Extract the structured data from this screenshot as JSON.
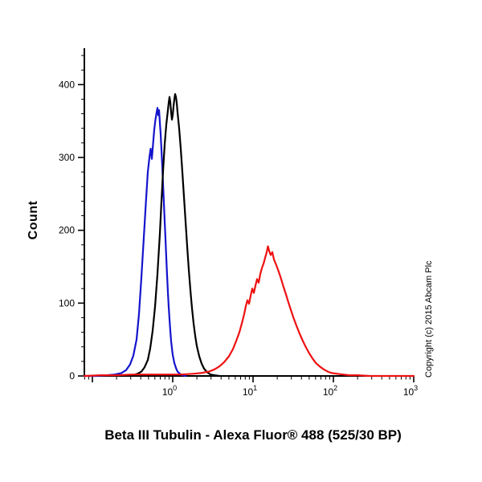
{
  "title": "Beta III Tubulin - Alexa Fluor® 488 (525/30 BP)",
  "ylabel": "Count",
  "copyright": "Copyright (c) 2015 Abcam Plc",
  "chart_data": {
    "type": "line",
    "title": "Beta III Tubulin - Alexa Fluor® 488 (525/30 BP)",
    "xlabel": "",
    "ylabel": "Count",
    "x_scale": "log10",
    "xlim_log10": [
      -1.1,
      3
    ],
    "ylim": [
      0,
      450
    ],
    "grid": false,
    "legend": "none",
    "y_ticks": [
      0,
      100,
      200,
      300,
      400
    ],
    "x_major_exponents": [
      0,
      1,
      2,
      3
    ],
    "x_tick_labels": [
      "10^0",
      "10^1",
      "10^2",
      "10^3"
    ],
    "x_unlabeled_major_log10": [
      -1
    ],
    "x_tick_base": "10",
    "annotation": "Copyright (c) 2015 Abcam Plc",
    "series": [
      {
        "name": "blue",
        "color": "#1414cd",
        "peak_x_log10": -0.19,
        "peak_count": 368,
        "points_log10x_count": [
          [
            -1.1,
            0
          ],
          [
            -0.95,
            0
          ],
          [
            -0.82,
            1
          ],
          [
            -0.72,
            2
          ],
          [
            -0.64,
            4
          ],
          [
            -0.58,
            8
          ],
          [
            -0.53,
            16
          ],
          [
            -0.49,
            28
          ],
          [
            -0.45,
            50
          ],
          [
            -0.42,
            85
          ],
          [
            -0.39,
            135
          ],
          [
            -0.36,
            190
          ],
          [
            -0.33,
            245
          ],
          [
            -0.31,
            280
          ],
          [
            -0.29,
            300
          ],
          [
            -0.275,
            312
          ],
          [
            -0.26,
            298
          ],
          [
            -0.245,
            318
          ],
          [
            -0.23,
            338
          ],
          [
            -0.215,
            352
          ],
          [
            -0.2,
            362
          ],
          [
            -0.19,
            368
          ],
          [
            -0.18,
            358
          ],
          [
            -0.17,
            365
          ],
          [
            -0.16,
            348
          ],
          [
            -0.15,
            332
          ],
          [
            -0.14,
            310
          ],
          [
            -0.13,
            288
          ],
          [
            -0.12,
            262
          ],
          [
            -0.11,
            238
          ],
          [
            -0.1,
            212
          ],
          [
            -0.09,
            188
          ],
          [
            -0.08,
            162
          ],
          [
            -0.07,
            138
          ],
          [
            -0.06,
            115
          ],
          [
            -0.05,
            95
          ],
          [
            -0.04,
            78
          ],
          [
            -0.03,
            62
          ],
          [
            -0.02,
            48
          ],
          [
            -0.01,
            38
          ],
          [
            0.0,
            29
          ],
          [
            0.02,
            18
          ],
          [
            0.04,
            11
          ],
          [
            0.06,
            6
          ],
          [
            0.09,
            3
          ],
          [
            0.12,
            1
          ],
          [
            0.16,
            0
          ]
        ]
      },
      {
        "name": "black",
        "color": "#000000",
        "peak_x_log10": 0.03,
        "peak_count": 387,
        "points_log10x_count": [
          [
            -0.6,
            0
          ],
          [
            -0.5,
            1
          ],
          [
            -0.44,
            3
          ],
          [
            -0.39,
            6
          ],
          [
            -0.35,
            12
          ],
          [
            -0.31,
            22
          ],
          [
            -0.28,
            38
          ],
          [
            -0.25,
            62
          ],
          [
            -0.22,
            95
          ],
          [
            -0.19,
            140
          ],
          [
            -0.16,
            195
          ],
          [
            -0.14,
            240
          ],
          [
            -0.12,
            282
          ],
          [
            -0.1,
            318
          ],
          [
            -0.08,
            345
          ],
          [
            -0.06,
            365
          ],
          [
            -0.05,
            375
          ],
          [
            -0.04,
            383
          ],
          [
            -0.03,
            376
          ],
          [
            -0.02,
            362
          ],
          [
            -0.01,
            352
          ],
          [
            0.0,
            358
          ],
          [
            0.01,
            370
          ],
          [
            0.02,
            380
          ],
          [
            0.03,
            387
          ],
          [
            0.04,
            383
          ],
          [
            0.05,
            375
          ],
          [
            0.06,
            362
          ],
          [
            0.08,
            340
          ],
          [
            0.1,
            312
          ],
          [
            0.12,
            280
          ],
          [
            0.14,
            246
          ],
          [
            0.16,
            212
          ],
          [
            0.18,
            178
          ],
          [
            0.2,
            146
          ],
          [
            0.22,
            118
          ],
          [
            0.24,
            93
          ],
          [
            0.26,
            72
          ],
          [
            0.28,
            55
          ],
          [
            0.3,
            41
          ],
          [
            0.33,
            27
          ],
          [
            0.36,
            17
          ],
          [
            0.39,
            10
          ],
          [
            0.43,
            5
          ],
          [
            0.47,
            2
          ],
          [
            0.52,
            1
          ],
          [
            0.58,
            0
          ]
        ]
      },
      {
        "name": "red",
        "color": "#ee1111",
        "peak_x_log10": 1.185,
        "peak_count": 178,
        "points_log10x_count": [
          [
            -1.1,
            0
          ],
          [
            -0.9,
            1
          ],
          [
            -0.7,
            1
          ],
          [
            -0.5,
            2
          ],
          [
            -0.3,
            2
          ],
          [
            -0.1,
            2
          ],
          [
            0.1,
            2
          ],
          [
            0.25,
            3
          ],
          [
            0.35,
            4
          ],
          [
            0.45,
            6
          ],
          [
            0.52,
            9
          ],
          [
            0.58,
            13
          ],
          [
            0.64,
            19
          ],
          [
            0.7,
            27
          ],
          [
            0.75,
            37
          ],
          [
            0.79,
            48
          ],
          [
            0.83,
            60
          ],
          [
            0.86,
            72
          ],
          [
            0.89,
            85
          ],
          [
            0.91,
            96
          ],
          [
            0.93,
            104
          ],
          [
            0.95,
            99
          ],
          [
            0.97,
            110
          ],
          [
            0.99,
            120
          ],
          [
            1.01,
            114
          ],
          [
            1.03,
            124
          ],
          [
            1.05,
            133
          ],
          [
            1.07,
            128
          ],
          [
            1.09,
            140
          ],
          [
            1.11,
            148
          ],
          [
            1.13,
            154
          ],
          [
            1.15,
            162
          ],
          [
            1.17,
            170
          ],
          [
            1.185,
            178
          ],
          [
            1.2,
            172
          ],
          [
            1.22,
            166
          ],
          [
            1.24,
            170
          ],
          [
            1.26,
            160
          ],
          [
            1.29,
            152
          ],
          [
            1.32,
            143
          ],
          [
            1.35,
            133
          ],
          [
            1.38,
            122
          ],
          [
            1.41,
            112
          ],
          [
            1.44,
            101
          ],
          [
            1.47,
            91
          ],
          [
            1.5,
            81
          ],
          [
            1.54,
            69
          ],
          [
            1.58,
            58
          ],
          [
            1.62,
            48
          ],
          [
            1.66,
            39
          ],
          [
            1.7,
            31
          ],
          [
            1.74,
            24
          ],
          [
            1.78,
            18
          ],
          [
            1.83,
            13
          ],
          [
            1.88,
            9
          ],
          [
            1.93,
            6
          ],
          [
            1.98,
            4
          ],
          [
            2.05,
            3
          ],
          [
            2.12,
            2
          ],
          [
            2.2,
            1
          ],
          [
            2.3,
            1
          ],
          [
            2.45,
            0
          ],
          [
            3.0,
            0
          ]
        ]
      }
    ]
  }
}
